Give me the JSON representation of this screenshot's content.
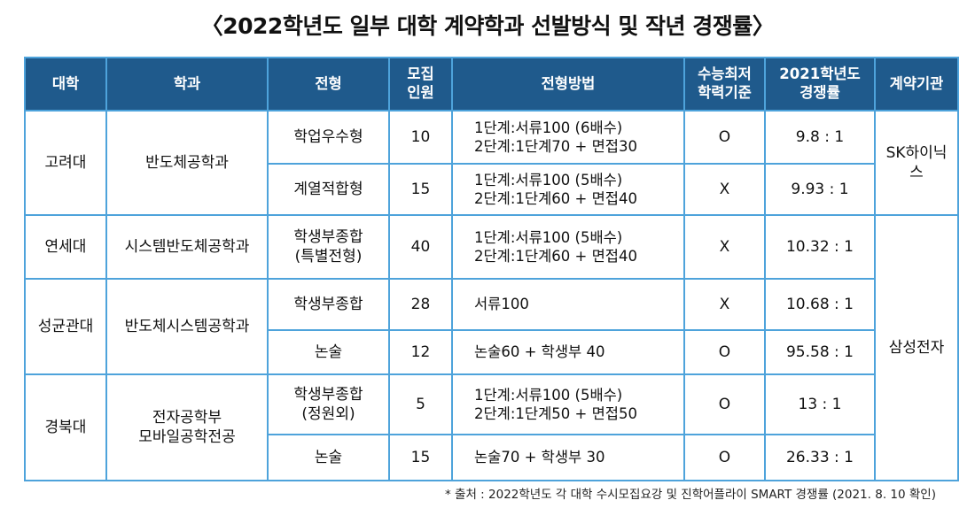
{
  "title": "〈2022학년도 일부 대학 계약학과 선발방식 및 작년 경쟁률〉",
  "headers": {
    "university": "대학",
    "department": "학과",
    "admission_type": "전형",
    "quota_l1": "모집",
    "quota_l2": "인원",
    "method": "전형방법",
    "csat_l1": "수능최저",
    "csat_l2": "학력기준",
    "rate_l1": "2021학년도",
    "rate_l2": "경쟁률",
    "company": "계약기관"
  },
  "rows": [
    {
      "university": "고려대",
      "department": "반도체공학과",
      "type_l1": "학업우수형",
      "type_l2": "",
      "quota": "10",
      "method_l1": "1단계:서류100 (6배수)",
      "method_l2": "2단계:1단계70 + 면접30",
      "csat": "O",
      "rate": "9.8 : 1",
      "company": "SK하이닉스"
    },
    {
      "type_l1": "계열적합형",
      "type_l2": "",
      "quota": "15",
      "method_l1": "1단계:서류100 (5배수)",
      "method_l2": "2단계:1단계60 + 면접40",
      "csat": "X",
      "rate": "9.93 : 1"
    },
    {
      "university": "연세대",
      "department": "시스템반도체공학과",
      "type_l1": "학생부종합",
      "type_l2": "(특별전형)",
      "quota": "40",
      "method_l1": "1단계:서류100 (5배수)",
      "method_l2": "2단계:1단계60 + 면접40",
      "csat": "X",
      "rate": "10.32 : 1",
      "company": "삼성전자"
    },
    {
      "university": "성균관대",
      "department": "반도체시스템공학과",
      "type_l1": "학생부종합",
      "type_l2": "",
      "quota": "28",
      "method_l1": "서류100",
      "method_l2": "",
      "csat": "X",
      "rate": "10.68 : 1"
    },
    {
      "type_l1": "논술",
      "type_l2": "",
      "quota": "12",
      "method_l1": "논술60 + 학생부 40",
      "method_l2": "",
      "csat": "O",
      "rate": "95.58 : 1"
    },
    {
      "university": "경북대",
      "department_l1": "전자공학부",
      "department_l2": "모바일공학전공",
      "type_l1": "학생부종합",
      "type_l2": "(정원외)",
      "quota": "5",
      "method_l1": "1단계:서류100 (5배수)",
      "method_l2": "2단계:1단계50 + 면접50",
      "csat": "O",
      "rate": "13 : 1"
    },
    {
      "type_l1": "논술",
      "type_l2": "",
      "quota": "15",
      "method_l1": "논술70 + 학생부 30",
      "method_l2": "",
      "csat": "O",
      "rate": "26.33 : 1"
    }
  ],
  "source": "* 출처 : 2022학년도 각 대학 수시모집요강 및 진학어플라이 SMART 경쟁률 (2021. 8. 10 확인)"
}
